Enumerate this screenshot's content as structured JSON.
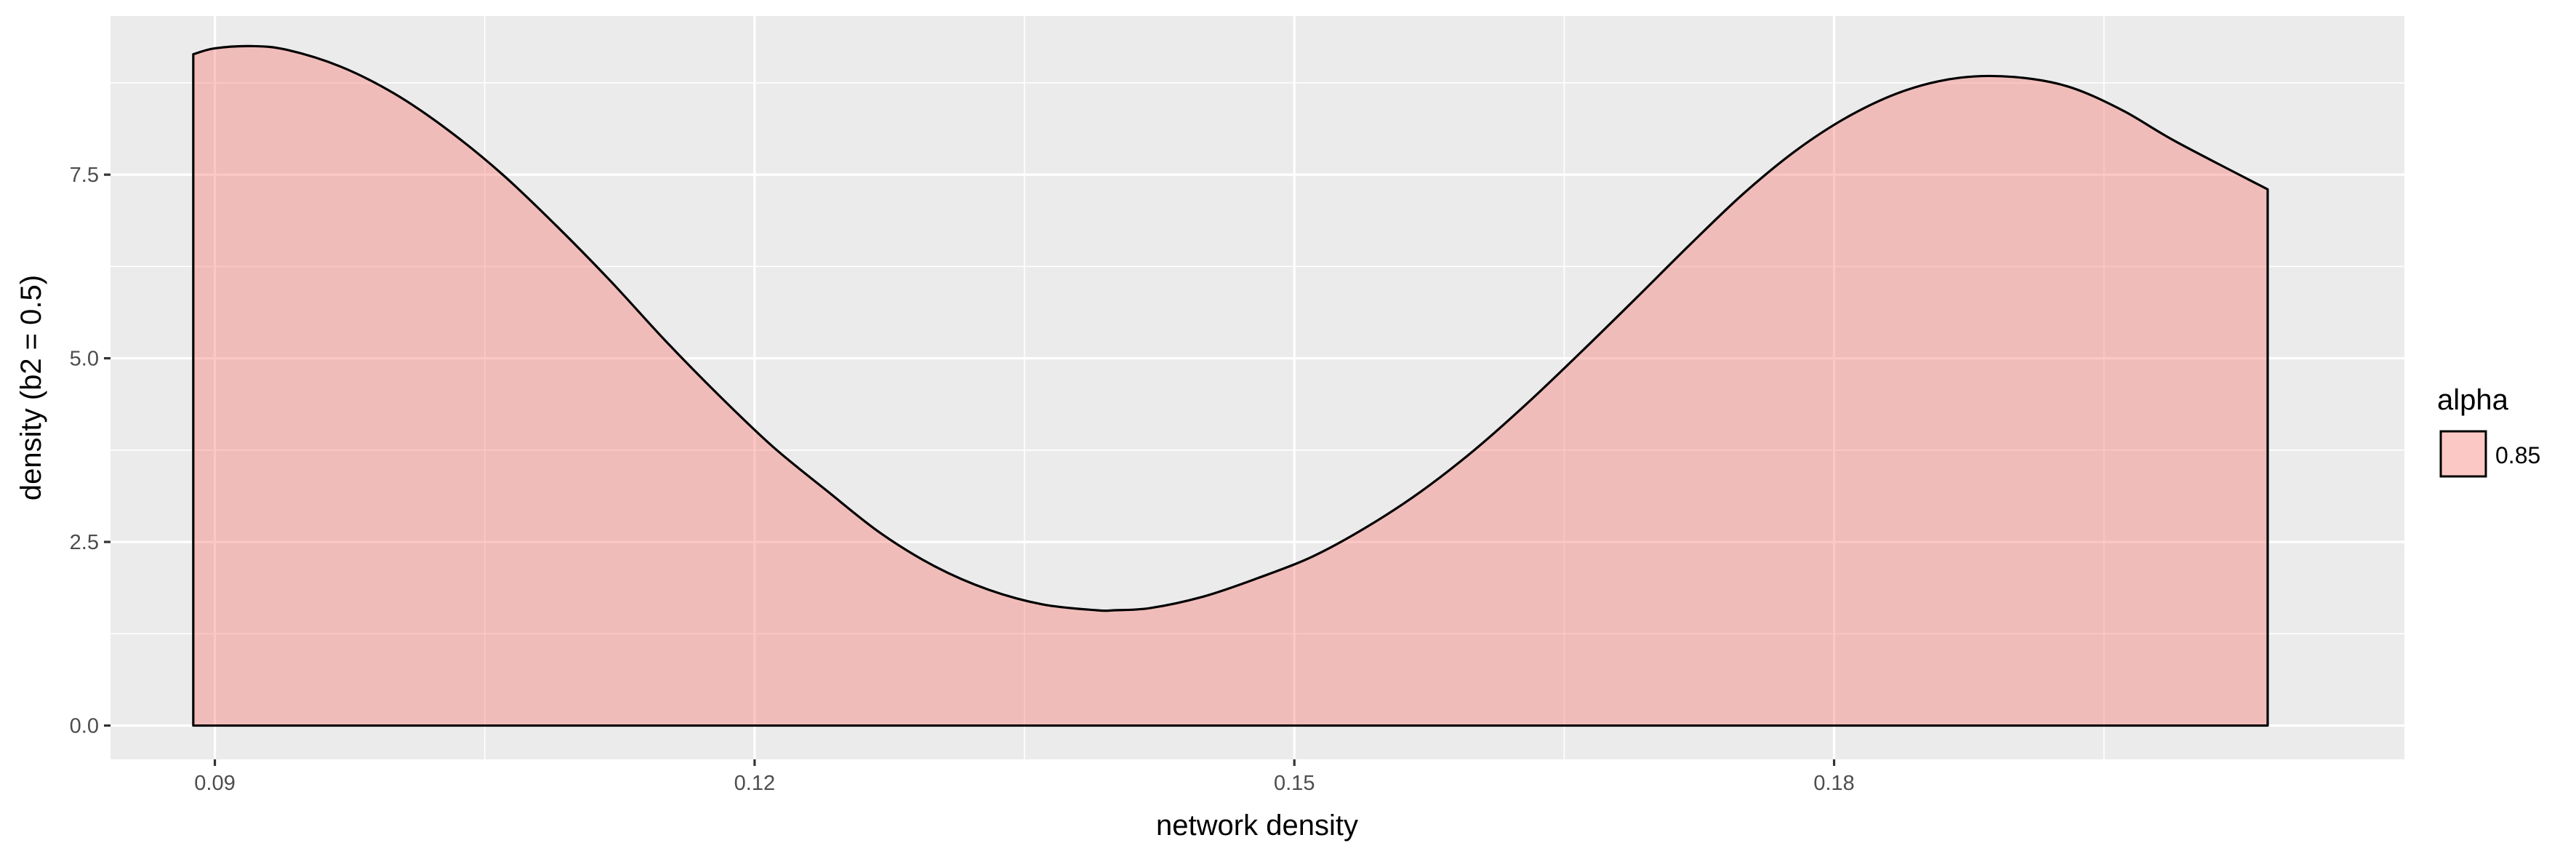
{
  "chart_data": {
    "type": "area",
    "xlabel": "network density",
    "ylabel": "density (b2 = 0.5)",
    "xlim": [
      0.0842,
      0.2117
    ],
    "ylim": [
      -0.46,
      9.66
    ],
    "x_ticks": [
      0.09,
      0.12,
      0.15,
      0.18
    ],
    "x_tick_labels": [
      "0.09",
      "0.12",
      "0.15",
      "0.18"
    ],
    "x_minor_ticks": [
      0.105,
      0.135,
      0.165,
      0.195
    ],
    "y_ticks": [
      0.0,
      2.5,
      5.0,
      7.5
    ],
    "y_tick_labels": [
      "0.0",
      "2.5",
      "5.0",
      "7.5"
    ],
    "y_minor_ticks": [
      1.25,
      3.75,
      6.25,
      8.75
    ],
    "grid": true,
    "legend": {
      "title": "alpha",
      "position": "right",
      "entries": [
        {
          "label": "0.85",
          "color": "#F8766D"
        }
      ]
    },
    "series": [
      {
        "name": "0.85",
        "fill": "#F8766D",
        "fill_opacity": 0.4,
        "stroke": "#000000",
        "x": [
          0.0888,
          0.09,
          0.092,
          0.094,
          0.097,
          0.1,
          0.103,
          0.106,
          0.109,
          0.112,
          0.115,
          0.118,
          0.121,
          0.124,
          0.127,
          0.13,
          0.133,
          0.136,
          0.139,
          0.14,
          0.142,
          0.145,
          0.148,
          0.151,
          0.154,
          0.157,
          0.16,
          0.163,
          0.166,
          0.169,
          0.172,
          0.175,
          0.178,
          0.181,
          0.184,
          0.187,
          0.19,
          0.193,
          0.196,
          0.199,
          0.2041
        ],
        "y": [
          9.14,
          9.22,
          9.25,
          9.2,
          8.97,
          8.6,
          8.1,
          7.5,
          6.8,
          6.05,
          5.25,
          4.5,
          3.8,
          3.2,
          2.62,
          2.17,
          1.85,
          1.65,
          1.57,
          1.57,
          1.6,
          1.76,
          2.01,
          2.3,
          2.7,
          3.18,
          3.75,
          4.4,
          5.1,
          5.82,
          6.55,
          7.25,
          7.85,
          8.32,
          8.65,
          8.82,
          8.83,
          8.7,
          8.38,
          7.95,
          7.3
        ]
      }
    ]
  }
}
